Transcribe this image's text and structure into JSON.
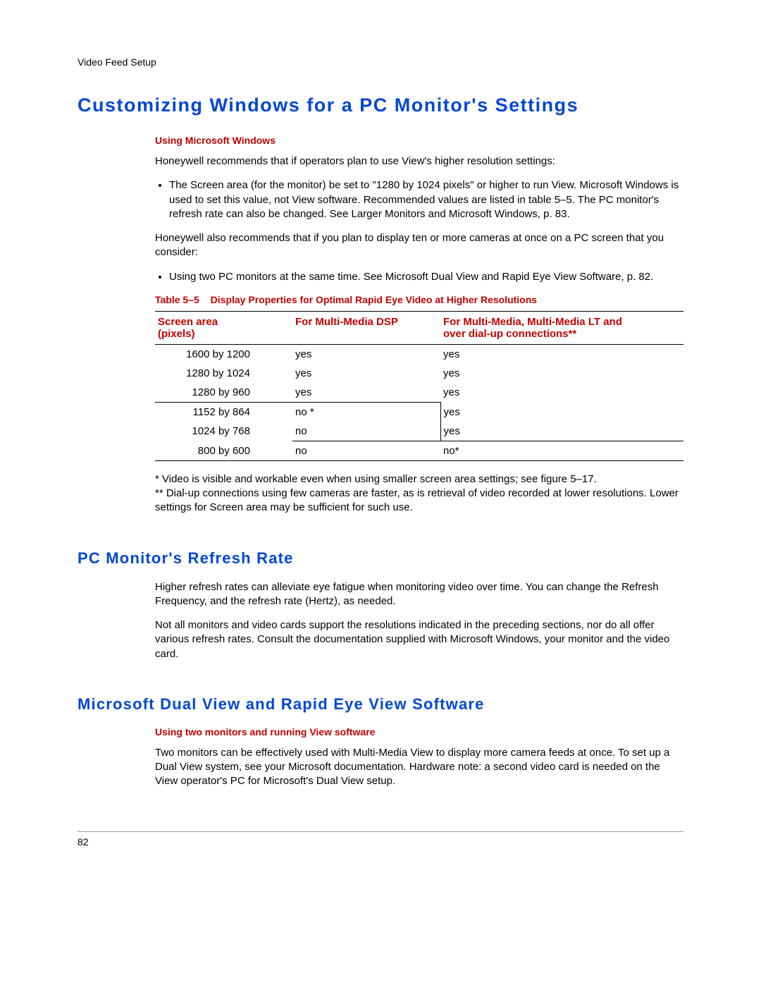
{
  "header": "Video Feed Setup",
  "title1": "Customizing Windows for a PC Monitor's Settings",
  "sub1": "Using Microsoft Windows",
  "p1": "Honeywell recommends that if operators plan to use View's higher resolution settings:",
  "bullet1": "The Screen area (for the monitor) be set to \"1280 by 1024 pixels\" or higher to run View. Microsoft Windows is used to set this value, not View software. Recommended values are listed in table 5–5. The PC monitor's refresh rate can also be changed. See Larger Monitors and Microsoft Windows, p. 83.",
  "p2": "Honeywell also recommends that if you plan to display ten or more cameras at once on a PC screen that you consider:",
  "bullet2": "Using two PC monitors at the same time. See Microsoft Dual View and Rapid Eye View Software, p. 82.",
  "table": {
    "caption_num": "Table 5–5",
    "caption_text": "Display Properties for Optimal Rapid Eye Video at Higher Resolutions",
    "col1_a": "Screen area",
    "col1_b": "(pixels)",
    "col2": "For Multi-Media DSP",
    "col3_a": "For Multi-Media, Multi-Media LT and",
    "col3_b": "over dial-up connections**",
    "rows": [
      {
        "c1": "1600 by 1200",
        "c2": "yes",
        "c3": "yes"
      },
      {
        "c1": "1280 by 1024",
        "c2": "yes",
        "c3": "yes"
      },
      {
        "c1": "1280 by 960",
        "c2": "yes",
        "c3": "yes"
      },
      {
        "c1": "1152 by 864",
        "c2": "no *",
        "c3": "yes"
      },
      {
        "c1": "1024 by 768",
        "c2": "no",
        "c3": "yes"
      },
      {
        "c1": "800 by 600",
        "c2": "no",
        "c3": "no*"
      }
    ]
  },
  "foot1": "* Video is visible and workable even when using smaller screen area settings; see figure 5–17.",
  "foot2": "** Dial-up connections using few cameras are faster, as is retrieval of video recorded at lower resolutions. Lower settings for Screen area may be sufficient for such use.",
  "title2": "PC Monitor's Refresh Rate",
  "p3": "Higher refresh rates can alleviate eye fatigue when monitoring video over time. You can change the Refresh Frequency, and the refresh rate (Hertz), as needed.",
  "p4": "Not all monitors and video cards support the resolutions indicated in the preceding sections, nor do all offer various refresh rates. Consult the documentation supplied with Microsoft Windows, your monitor and the video card.",
  "title3": "Microsoft Dual View and Rapid Eye View Software",
  "sub3": "Using two monitors and running View software",
  "p5": "Two monitors can be effectively used with Multi-Media View to display more camera feeds at once. To set up a Dual View system, see your Microsoft documentation. Hardware note: a second video card is needed on the View operator's PC for Microsoft's Dual View setup.",
  "page_num": "82"
}
